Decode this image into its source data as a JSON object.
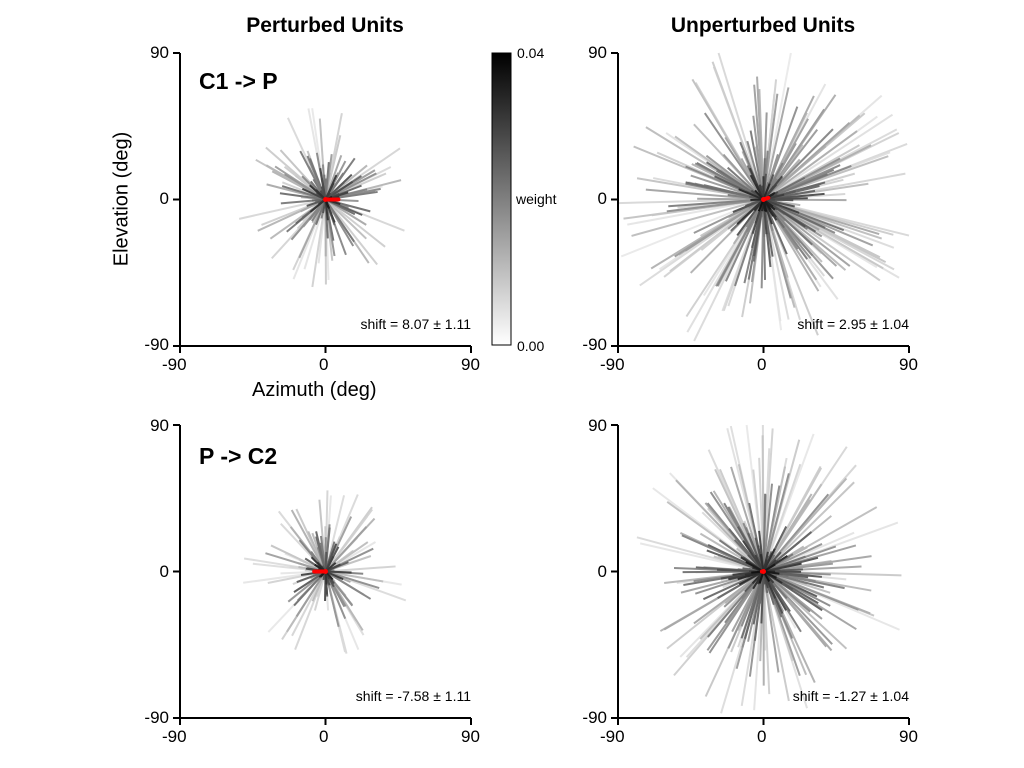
{
  "figure": {
    "col_titles": [
      "Perturbed Units",
      "Unperturbed Units"
    ],
    "xlabel": "Azimuth (deg)",
    "ylabel": "Elevation (deg)",
    "ticks": {
      "min": "-90",
      "mid": "0",
      "max": "90"
    }
  },
  "colorbar": {
    "label": "weight",
    "min_label": "0.00",
    "max_label": "0.04",
    "range": [
      0.0,
      0.04
    ]
  },
  "chart_data": [
    {
      "type": "scatter",
      "panel": "top-left",
      "title": "Perturbed Units",
      "label": "C1 -> P",
      "shift_text": "shift = 8.07 ± 1.11",
      "xlim": [
        -90,
        90
      ],
      "ylim": [
        -90,
        90
      ],
      "x_ticks": [
        "-90",
        "0",
        "90"
      ],
      "y_ticks": [
        "-90",
        "0",
        "90"
      ],
      "xlabel": "Azimuth (deg)",
      "ylabel": "Elevation (deg)",
      "center_arrow": {
        "from": [
          0,
          0
        ],
        "to": [
          8,
          0
        ],
        "color": "#ff0000"
      },
      "n_lines": 160,
      "spread": 28,
      "seed": 11
    },
    {
      "type": "scatter",
      "panel": "top-right",
      "title": "Unperturbed Units",
      "label": "",
      "shift_text": "shift = 2.95 ± 1.04",
      "xlim": [
        -90,
        90
      ],
      "ylim": [
        -90,
        90
      ],
      "x_ticks": [
        "-90",
        "0",
        "90"
      ],
      "y_ticks": [
        "-90",
        "0",
        "90"
      ],
      "center_arrow": {
        "from": [
          0,
          0
        ],
        "to": [
          3,
          1
        ],
        "color": "#ff0000"
      },
      "n_lines": 340,
      "spread": 48,
      "seed": 23
    },
    {
      "type": "scatter",
      "panel": "bottom-left",
      "title": "",
      "label": "P -> C2",
      "shift_text": "shift = -7.58 ± 1.11",
      "xlim": [
        -90,
        90
      ],
      "ylim": [
        -90,
        90
      ],
      "x_ticks": [
        "-90",
        "0",
        "90"
      ],
      "y_ticks": [
        "-90",
        "0",
        "90"
      ],
      "center_arrow": {
        "from": [
          0,
          0
        ],
        "to": [
          -7,
          0
        ],
        "color": "#ff0000"
      },
      "n_lines": 150,
      "spread": 26,
      "seed": 37
    },
    {
      "type": "scatter",
      "panel": "bottom-right",
      "title": "",
      "label": "",
      "shift_text": "shift = -1.27 ± 1.04",
      "xlim": [
        -90,
        90
      ],
      "ylim": [
        -90,
        90
      ],
      "x_ticks": [
        "-90",
        "0",
        "90"
      ],
      "y_ticks": [
        "-90",
        "0",
        "90"
      ],
      "center_arrow": {
        "from": [
          0,
          0
        ],
        "to": [
          -1,
          0
        ],
        "color": "#ff0000"
      },
      "n_lines": 320,
      "spread": 46,
      "seed": 53
    }
  ]
}
